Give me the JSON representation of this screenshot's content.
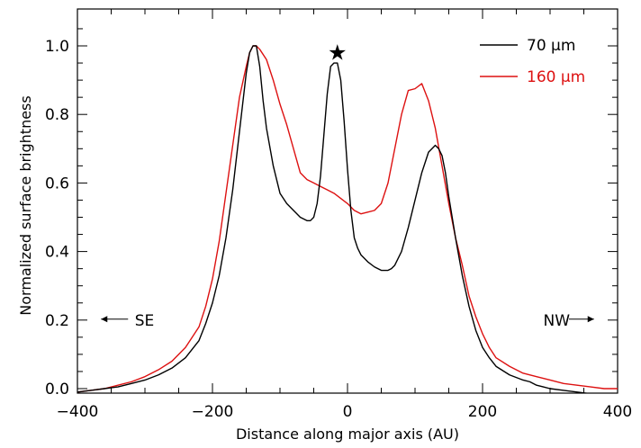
{
  "chart_data": {
    "type": "line",
    "xlabel": "Distance along major axis (AU)",
    "ylabel": "Normalized surface brightness",
    "xlim": [
      -400,
      400
    ],
    "ylim": [
      -0.02,
      1.1
    ],
    "xticks": [
      -400,
      -200,
      0,
      200,
      400
    ],
    "xtick_labels": [
      "−400",
      "−200",
      "0",
      "200",
      "400"
    ],
    "yticks": [
      0.0,
      0.2,
      0.4,
      0.6,
      0.8,
      1.0
    ],
    "ytick_labels": [
      "0.0",
      "0.2",
      "0.4",
      "0.6",
      "0.8",
      "1.0"
    ],
    "grid": false,
    "legend_position": "top-right",
    "series": [
      {
        "name": "70 μm",
        "color": "#000000",
        "x": [
          -400,
          -380,
          -360,
          -340,
          -320,
          -300,
          -280,
          -260,
          -240,
          -220,
          -210,
          -200,
          -190,
          -180,
          -170,
          -160,
          -150,
          -145,
          -140,
          -135,
          -130,
          -125,
          -120,
          -110,
          -100,
          -90,
          -80,
          -70,
          -60,
          -55,
          -50,
          -45,
          -40,
          -35,
          -30,
          -25,
          -20,
          -15,
          -10,
          -5,
          0,
          5,
          10,
          15,
          20,
          30,
          40,
          50,
          60,
          65,
          70,
          80,
          90,
          100,
          110,
          120,
          130,
          135,
          140,
          145,
          150,
          160,
          170,
          180,
          190,
          200,
          210,
          220,
          240,
          260,
          270,
          280,
          290,
          300,
          320,
          340,
          360,
          380,
          400
        ],
        "y": [
          -0.01,
          -0.005,
          0.0,
          0.005,
          0.015,
          0.025,
          0.04,
          0.06,
          0.09,
          0.14,
          0.19,
          0.25,
          0.33,
          0.44,
          0.58,
          0.75,
          0.92,
          0.98,
          1.0,
          1.0,
          0.94,
          0.84,
          0.76,
          0.65,
          0.57,
          0.54,
          0.52,
          0.5,
          0.49,
          0.49,
          0.5,
          0.54,
          0.62,
          0.74,
          0.86,
          0.94,
          0.95,
          0.95,
          0.9,
          0.78,
          0.64,
          0.52,
          0.44,
          0.41,
          0.39,
          0.37,
          0.355,
          0.345,
          0.345,
          0.35,
          0.36,
          0.4,
          0.47,
          0.55,
          0.63,
          0.69,
          0.71,
          0.7,
          0.68,
          0.63,
          0.56,
          0.44,
          0.33,
          0.24,
          0.17,
          0.12,
          0.09,
          0.065,
          0.04,
          0.025,
          0.02,
          0.01,
          0.005,
          0.0,
          -0.005,
          -0.01,
          -0.015,
          -0.02,
          -0.02
        ]
      },
      {
        "name": "160 μm",
        "color": "#dd1111",
        "x": [
          -400,
          -380,
          -360,
          -340,
          -320,
          -300,
          -280,
          -260,
          -240,
          -220,
          -210,
          -200,
          -190,
          -180,
          -170,
          -160,
          -150,
          -145,
          -140,
          -135,
          -130,
          -120,
          -110,
          -100,
          -90,
          -80,
          -70,
          -60,
          -50,
          -40,
          -30,
          -20,
          -10,
          0,
          10,
          20,
          30,
          40,
          50,
          60,
          70,
          80,
          90,
          100,
          110,
          120,
          130,
          140,
          150,
          160,
          170,
          180,
          190,
          200,
          210,
          220,
          240,
          260,
          280,
          300,
          320,
          340,
          360,
          380,
          400
        ],
        "y": [
          -0.01,
          -0.005,
          0.0,
          0.01,
          0.02,
          0.035,
          0.055,
          0.08,
          0.12,
          0.18,
          0.24,
          0.32,
          0.43,
          0.57,
          0.71,
          0.85,
          0.94,
          0.98,
          1.0,
          1.0,
          0.99,
          0.96,
          0.9,
          0.83,
          0.77,
          0.7,
          0.63,
          0.61,
          0.6,
          0.59,
          0.58,
          0.57,
          0.555,
          0.54,
          0.52,
          0.51,
          0.515,
          0.52,
          0.54,
          0.6,
          0.7,
          0.8,
          0.87,
          0.875,
          0.89,
          0.84,
          0.76,
          0.65,
          0.54,
          0.44,
          0.36,
          0.27,
          0.21,
          0.16,
          0.12,
          0.09,
          0.065,
          0.045,
          0.035,
          0.025,
          0.015,
          0.01,
          0.005,
          0.0,
          0.0
        ]
      }
    ],
    "annotations": {
      "star": {
        "x": -15,
        "y": 0.985,
        "symbol": "★"
      },
      "left_label": {
        "text": "SE",
        "x": -315,
        "y": 0.2,
        "arrow_from": -325,
        "arrow_to": -365
      },
      "right_label": {
        "text": "NW",
        "x": 290,
        "y": 0.2,
        "arrow_from": 328,
        "arrow_to": 365
      }
    }
  }
}
